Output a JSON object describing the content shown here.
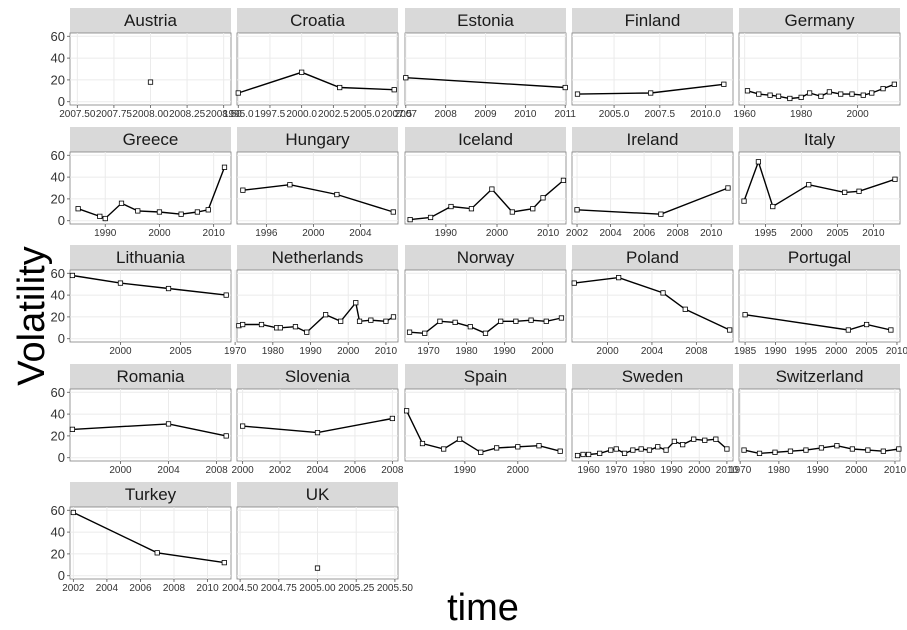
{
  "chart_data": {
    "type": "line",
    "facet_by": "country",
    "ylabel": "Volatility",
    "xlabel": "time",
    "ylim": [
      0,
      60
    ],
    "y_ticks": [
      0,
      20,
      40,
      60
    ],
    "grid": true,
    "panels": [
      {
        "name": "Austria",
        "x_ticks": [
          "2007.50",
          "2007.75",
          "2008.00",
          "2008.25",
          "2008.50"
        ],
        "x_tick_values": [
          2007.5,
          2007.75,
          2008.0,
          2008.25,
          2008.5
        ],
        "xlim": [
          2007.45,
          2008.55
        ],
        "x": [
          2008.0
        ],
        "y": [
          18
        ]
      },
      {
        "name": "Croatia",
        "x_ticks": [
          "1995.0",
          "1997.5",
          "2000.0",
          "2002.5",
          "2005.0",
          "2007.5"
        ],
        "x_tick_values": [
          1995,
          1997.5,
          2000,
          2002.5,
          2005,
          2007.5
        ],
        "xlim": [
          1994.9,
          2007.6
        ],
        "x": [
          1995,
          2000,
          2003,
          2007.3
        ],
        "y": [
          8,
          27,
          13,
          11
        ]
      },
      {
        "name": "Estonia",
        "x_ticks": [
          "2007",
          "2008",
          "2009",
          "2010",
          "2011"
        ],
        "x_tick_values": [
          2007,
          2008,
          2009,
          2010,
          2011
        ],
        "xlim": [
          2006.98,
          2011.02
        ],
        "x": [
          2007,
          2011
        ],
        "y": [
          22,
          13
        ]
      },
      {
        "name": "Finland",
        "x_ticks": [
          "2005.0",
          "2007.5",
          "2010.0"
        ],
        "x_tick_values": [
          2005,
          2007.5,
          2010
        ],
        "xlim": [
          2002.7,
          2011.5
        ],
        "x": [
          2003,
          2007,
          2011
        ],
        "y": [
          7,
          8,
          16
        ]
      },
      {
        "name": "Germany",
        "x_ticks": [
          "1960",
          "1980",
          "2000"
        ],
        "x_tick_values": [
          1960,
          1980,
          2000
        ],
        "xlim": [
          1958,
          2015
        ],
        "x": [
          1961,
          1965,
          1969,
          1972,
          1976,
          1980,
          1983,
          1987,
          1990,
          1994,
          1998,
          2002,
          2005,
          2009,
          2013
        ],
        "y": [
          10,
          7,
          6,
          5,
          3,
          4,
          8,
          5,
          9,
          7,
          7,
          6,
          8,
          12,
          16
        ]
      },
      {
        "name": "Greece",
        "x_ticks": [
          "1990",
          "2000",
          "2010"
        ],
        "x_tick_values": [
          1990,
          2000,
          2010
        ],
        "xlim": [
          1983.5,
          2013.2
        ],
        "x": [
          1985,
          1989,
          1990,
          1993,
          1996,
          2000,
          2004,
          2007,
          2009,
          2012
        ],
        "y": [
          11,
          4,
          2,
          16,
          9,
          8,
          6,
          8,
          10,
          49
        ]
      },
      {
        "name": "Hungary",
        "x_ticks": [
          "1996",
          "2000",
          "2004"
        ],
        "x_tick_values": [
          1996,
          2000,
          2004
        ],
        "xlim": [
          1993.5,
          2007.2
        ],
        "x": [
          1994,
          1998,
          2002,
          2006.8
        ],
        "y": [
          28,
          33,
          24,
          8
        ]
      },
      {
        "name": "Iceland",
        "x_ticks": [
          "1990",
          "2000",
          "2010"
        ],
        "x_tick_values": [
          1990,
          2000,
          2010
        ],
        "xlim": [
          1982,
          2013.5
        ],
        "x": [
          1983,
          1987,
          1991,
          1995,
          1999,
          2003,
          2007,
          2009,
          2013
        ],
        "y": [
          1,
          3,
          13,
          11,
          29,
          8,
          11,
          21,
          37
        ]
      },
      {
        "name": "Ireland",
        "x_ticks": [
          "2002",
          "2004",
          "2006",
          "2008",
          "2010"
        ],
        "x_tick_values": [
          2002,
          2004,
          2006,
          2008,
          2010
        ],
        "xlim": [
          2001.7,
          2011.3
        ],
        "x": [
          2002,
          2007,
          2011
        ],
        "y": [
          10,
          6,
          30
        ]
      },
      {
        "name": "Italy",
        "x_ticks": [
          "1995",
          "2000",
          "2005",
          "2010"
        ],
        "x_tick_values": [
          1995,
          2000,
          2005,
          2010
        ],
        "xlim": [
          1991.3,
          2013.7
        ],
        "x": [
          1992,
          1994,
          1996,
          2001,
          2006,
          2008,
          2013
        ],
        "y": [
          18,
          54,
          13,
          33,
          26,
          27,
          38
        ]
      },
      {
        "name": "Lithuania",
        "x_ticks": [
          "2000",
          "2005"
        ],
        "x_tick_values": [
          2000,
          2005
        ],
        "xlim": [
          1995.8,
          2009.2
        ],
        "x": [
          1996,
          2000,
          2004,
          2008.8
        ],
        "y": [
          58,
          51,
          46,
          40
        ]
      },
      {
        "name": "Netherlands",
        "x_ticks": [
          "1970",
          "1980",
          "1990",
          "2000",
          "2010"
        ],
        "x_tick_values": [
          1970,
          1980,
          1990,
          2000,
          2010
        ],
        "xlim": [
          1970.5,
          2013.2
        ],
        "x": [
          1971,
          1972,
          1977,
          1981,
          1982,
          1986,
          1989,
          1994,
          1998,
          2002,
          2003,
          2006,
          2010,
          2012
        ],
        "y": [
          12,
          13,
          13,
          10,
          10,
          11,
          6,
          22,
          16,
          33,
          16,
          17,
          16,
          20
        ]
      },
      {
        "name": "Norway",
        "x_ticks": [
          "1970",
          "1980",
          "1990",
          "2000"
        ],
        "x_tick_values": [
          1970,
          1980,
          1990,
          2000
        ],
        "xlim": [
          1963.8,
          2006.2
        ],
        "x": [
          1965,
          1969,
          1973,
          1977,
          1981,
          1985,
          1989,
          1993,
          1997,
          2001,
          2005
        ],
        "y": [
          6,
          5,
          16,
          15,
          11,
          5,
          16,
          16,
          17,
          16,
          19
        ]
      },
      {
        "name": "Poland",
        "x_ticks": [
          "2000",
          "2004",
          "2008"
        ],
        "x_tick_values": [
          2000,
          2004,
          2008
        ],
        "xlim": [
          1996.8,
          2011.3
        ],
        "x": [
          1997,
          2001,
          2005,
          2007,
          2011
        ],
        "y": [
          51,
          56,
          42,
          27,
          8
        ]
      },
      {
        "name": "Portugal",
        "x_ticks": [
          "1985",
          "1990",
          "1995",
          "2000",
          "2005",
          "2010"
        ],
        "x_tick_values": [
          1985,
          1990,
          1995,
          2000,
          2005,
          2010
        ],
        "xlim": [
          1984,
          2010.5
        ],
        "x": [
          1985,
          2002,
          2005,
          2009
        ],
        "y": [
          22,
          8,
          13,
          8
        ]
      },
      {
        "name": "Romania",
        "x_ticks": [
          "2000",
          "2004",
          "2008"
        ],
        "x_tick_values": [
          2000,
          2004,
          2008
        ],
        "xlim": [
          1995.8,
          2009.2
        ],
        "x": [
          1996,
          2004,
          2008.8
        ],
        "y": [
          26,
          31,
          20
        ]
      },
      {
        "name": "Slovenia",
        "x_ticks": [
          "2000",
          "2002",
          "2004",
          "2006",
          "2008"
        ],
        "x_tick_values": [
          2000,
          2002,
          2004,
          2006,
          2008
        ],
        "xlim": [
          1999.7,
          2008.3
        ],
        "x": [
          2000,
          2004,
          2008
        ],
        "y": [
          29,
          23,
          36
        ]
      },
      {
        "name": "Spain",
        "x_ticks": [
          "1990",
          "2000"
        ],
        "x_tick_values": [
          1990,
          2000
        ],
        "xlim": [
          1978.7,
          2009.1
        ],
        "x": [
          1979,
          1982,
          1986,
          1989,
          1993,
          1996,
          2000,
          2004,
          2008
        ],
        "y": [
          43,
          13,
          8,
          17,
          5,
          9,
          10,
          11,
          6
        ]
      },
      {
        "name": "Sweden",
        "x_ticks": [
          "1960",
          "1970",
          "1980",
          "1990",
          "2000",
          "2010"
        ],
        "x_tick_values": [
          1960,
          1970,
          1980,
          1990,
          2000,
          2010
        ],
        "xlim": [
          1954,
          2012.2
        ],
        "x": [
          1956,
          1958,
          1960,
          1964,
          1968,
          1970,
          1973,
          1976,
          1979,
          1982,
          1985,
          1988,
          1991,
          1994,
          1998,
          2002,
          2006,
          2010
        ],
        "y": [
          2,
          3,
          3,
          4,
          7,
          8,
          4,
          7,
          8,
          7,
          10,
          7,
          15,
          12,
          17,
          16,
          17,
          8
        ]
      },
      {
        "name": "Switzerland",
        "x_ticks": [
          "1970",
          "1980",
          "1990",
          "2000",
          "2010"
        ],
        "x_tick_values": [
          1970,
          1980,
          1990,
          2000,
          2010
        ],
        "xlim": [
          1969.7,
          2011.3
        ],
        "x": [
          1971,
          1975,
          1979,
          1983,
          1987,
          1991,
          1995,
          1999,
          2003,
          2007,
          2011
        ],
        "y": [
          7,
          4,
          5,
          6,
          7,
          9,
          11,
          8,
          7,
          6,
          8
        ]
      },
      {
        "name": "Turkey",
        "x_ticks": [
          "2002",
          "2004",
          "2006",
          "2008",
          "2010"
        ],
        "x_tick_values": [
          2002,
          2004,
          2006,
          2008,
          2010
        ],
        "xlim": [
          2001.8,
          2011.4
        ],
        "x": [
          2002,
          2007,
          2011
        ],
        "y": [
          58,
          21,
          12
        ]
      },
      {
        "name": "UK",
        "x_ticks": [
          "2004.50",
          "2004.75",
          "2005.00",
          "2005.25",
          "2005.50"
        ],
        "x_tick_values": [
          2004.5,
          2004.75,
          2005.0,
          2005.25,
          2005.5
        ],
        "xlim": [
          2004.48,
          2005.52
        ],
        "x": [
          2005.0
        ],
        "y": [
          7
        ]
      }
    ]
  },
  "colors": {
    "strip_bg": "#d9d9d9",
    "panel_bg": "#ffffff",
    "panel_border": "#7f7f7f",
    "grid": "#ebebeb",
    "line": "#000000",
    "point_fill": "#ffffff"
  }
}
